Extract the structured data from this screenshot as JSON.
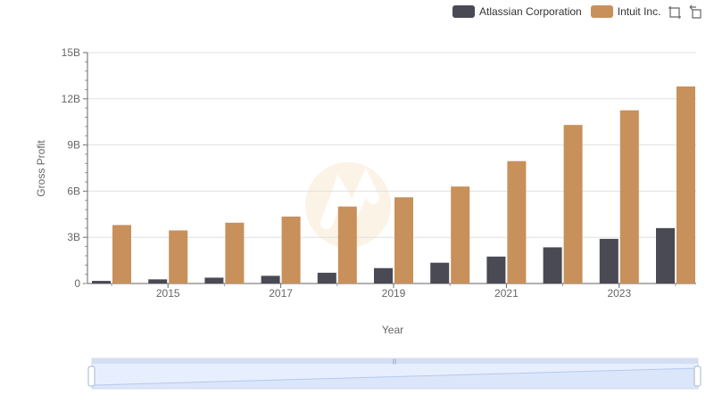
{
  "legend": {
    "series_a": "Atlassian Corporation",
    "series_b": "Intuit Inc.",
    "color_a": "#4a4a55",
    "color_b": "#c8905a"
  },
  "toolbox": {
    "zoom_icon": "zoom-select-icon",
    "restore_icon": "restore-icon"
  },
  "chart_data": {
    "type": "bar",
    "xlabel": "Year",
    "ylabel": "Gross Profit",
    "ylim": [
      0,
      15000000000
    ],
    "yticks": [
      "0",
      "3B",
      "6B",
      "9B",
      "12B",
      "15B"
    ],
    "xtick_labels": [
      "2015",
      "2017",
      "2019",
      "2021",
      "2023"
    ],
    "categories": [
      "2014",
      "2015",
      "2016",
      "2017",
      "2018",
      "2019",
      "2020",
      "2021",
      "2022",
      "2023",
      "2024"
    ],
    "grid": true,
    "legend_position": "top-right",
    "series": [
      {
        "name": "Atlassian Corporation",
        "color": "#4a4a55",
        "values": [
          170000000,
          270000000,
          380000000,
          500000000,
          700000000,
          1000000000,
          1350000000,
          1750000000,
          2350000000,
          2900000000,
          3600000000
        ]
      },
      {
        "name": "Intuit Inc.",
        "color": "#c8905a",
        "values": [
          3800000000,
          3450000000,
          3950000000,
          4350000000,
          5000000000,
          5600000000,
          6300000000,
          7950000000,
          10300000000,
          11250000000,
          12800000000
        ]
      }
    ]
  }
}
